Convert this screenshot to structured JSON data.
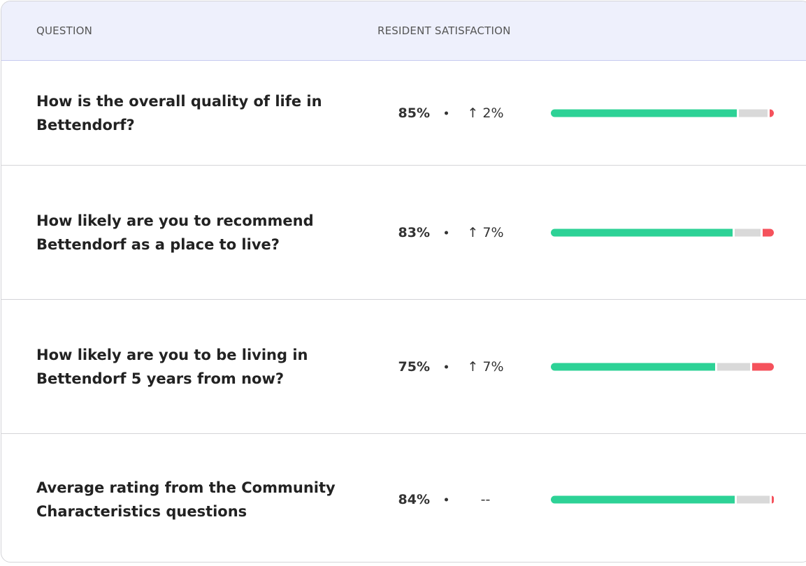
{
  "table": {
    "headers": [
      "QUESTION",
      "RESIDENT SATISFACTION"
    ],
    "segment_colors": [
      "#2dd296",
      "#d9d9d9",
      "#f5525c"
    ],
    "rows": [
      {
        "question": "How is the overall quality of life in Bettendorf?",
        "satisfaction": "85%",
        "change": "↑ 2%",
        "distribution": [
          85,
          13,
          2
        ]
      },
      {
        "question": "How likely are you to recommend Bettendorf as a place to live?",
        "satisfaction": "83%",
        "change": "↑ 7%",
        "distribution": [
          83,
          12,
          5
        ]
      },
      {
        "question": "How likely are you to be living in Bettendorf 5 years from now?",
        "satisfaction": "75%",
        "change": "↑ 7%",
        "distribution": [
          75,
          15,
          10
        ]
      },
      {
        "question": "Average rating from the Community Characteristics questions",
        "satisfaction": "84%",
        "change": "--",
        "distribution": [
          84,
          15,
          1
        ]
      }
    ]
  }
}
